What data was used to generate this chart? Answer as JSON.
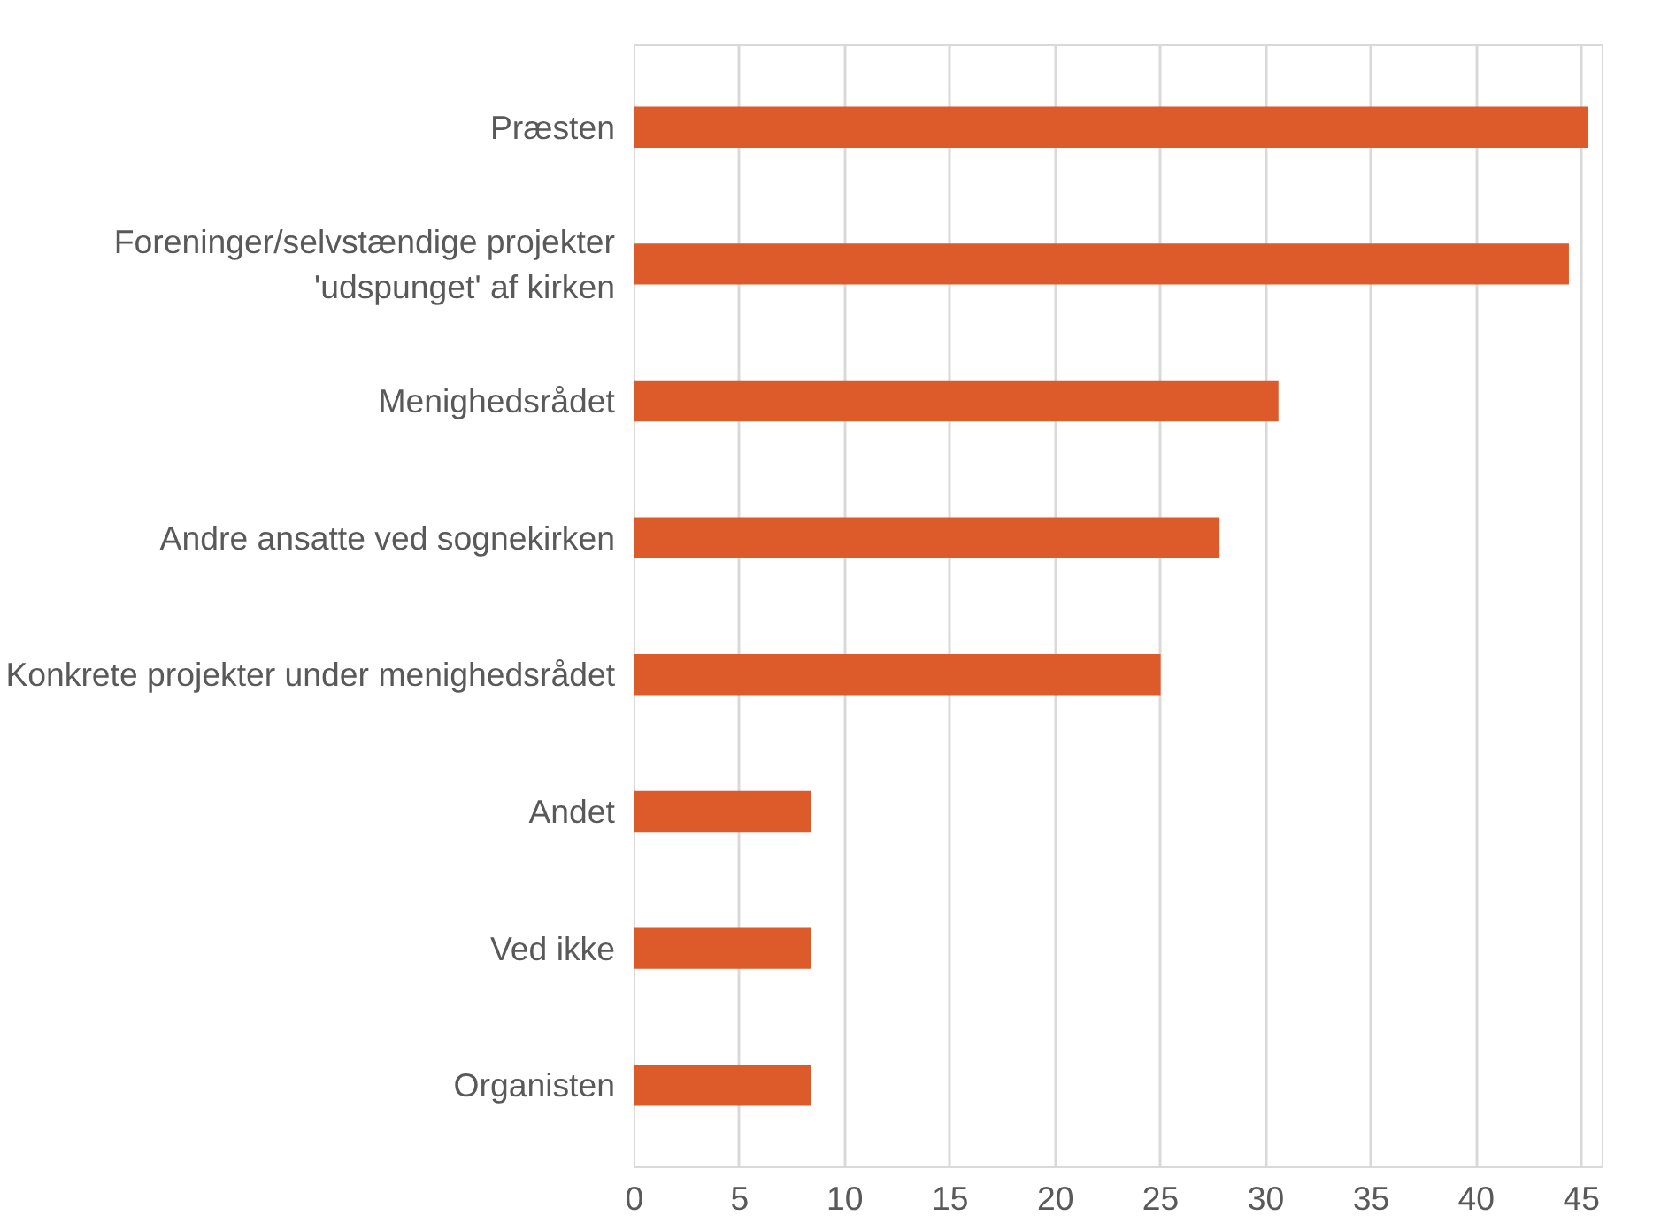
{
  "chart_data": {
    "type": "bar",
    "orientation": "horizontal",
    "categories": [
      "Præsten",
      "Foreninger/selvstændige projekter\n'udspunget' af kirken",
      "Menighedsrådet",
      "Andre ansatte ved sognekirken",
      "Konkrete projekter under menighedsrådet",
      "Andet",
      "Ved ikke",
      "Organisten"
    ],
    "values": [
      45.3,
      44.4,
      30.6,
      27.8,
      25.0,
      8.4,
      8.4,
      8.4
    ],
    "color": "#dd5a2a",
    "xlim": [
      0,
      46
    ],
    "xticks": [
      0,
      5,
      10,
      15,
      20,
      25,
      30,
      35,
      40,
      45
    ],
    "grid": "x"
  }
}
